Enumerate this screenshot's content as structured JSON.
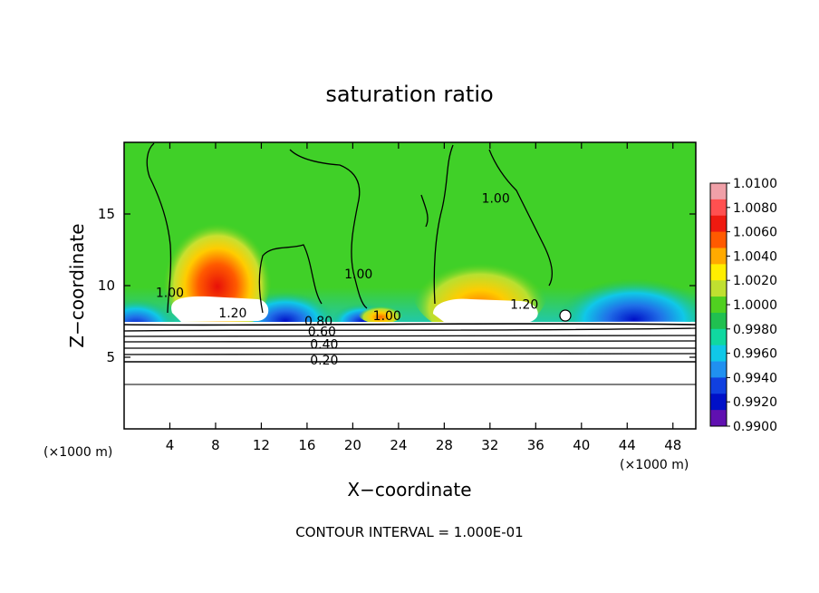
{
  "chart_data": {
    "type": "heatmap",
    "title": "saturation ratio",
    "xlabel": "X−coordinate",
    "ylabel": "Z−coordinate",
    "x_unit_left": "(×1000 m)",
    "x_unit_right": "(×1000 m)",
    "xlim": [
      0,
      50
    ],
    "ylim": [
      0,
      20
    ],
    "x_ticks": [
      4,
      8,
      12,
      16,
      20,
      24,
      28,
      32,
      36,
      40,
      44,
      48
    ],
    "y_ticks": [
      5,
      10,
      15
    ],
    "colorbar": {
      "min": 0.99,
      "max": 1.01,
      "labels": [
        "1.0100",
        "1.0080",
        "1.0060",
        "1.0040",
        "1.0020",
        "1.0000",
        "0.9980",
        "0.9960",
        "0.9940",
        "0.9920",
        "0.9900"
      ],
      "colors": [
        "#f0a0a8",
        "#ff5050",
        "#ee1a10",
        "#ff5a00",
        "#ffaa00",
        "#ffee00",
        "#c0e030",
        "#50d020",
        "#20c050",
        "#10d8a0",
        "#10c8e8",
        "#2090f0",
        "#1040e0",
        "#0010c8",
        "#6010b0"
      ]
    },
    "contour_labels": [
      {
        "text": "1.20",
        "x": 9.5,
        "y": 7.8
      },
      {
        "text": "1.20",
        "x": 35,
        "y": 8.4
      },
      {
        "text": "1.00",
        "x": 4,
        "y": 9.2
      },
      {
        "text": "1.00",
        "x": 20.5,
        "y": 10.5
      },
      {
        "text": "1.00",
        "x": 32.5,
        "y": 15.8
      },
      {
        "text": "1.00",
        "x": 23,
        "y": 7.6
      },
      {
        "text": "0.80",
        "x": 17,
        "y": 7.2
      },
      {
        "text": "0.60",
        "x": 17.3,
        "y": 6.5
      },
      {
        "text": "0.40",
        "x": 17.5,
        "y": 5.6
      },
      {
        "text": "0.20",
        "x": 17.5,
        "y": 4.5
      }
    ],
    "grid": false,
    "legend": "colorbar-right"
  },
  "footer": "CONTOUR INTERVAL = 1.000E-01"
}
